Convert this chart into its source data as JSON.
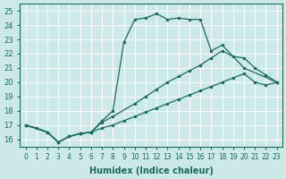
{
  "xlabel": "Humidex (Indice chaleur)",
  "bg_color": "#cce8e8",
  "grid_color": "#aad4d4",
  "line_color": "#1a6b5a",
  "xlim": [
    -0.5,
    23.5
  ],
  "ylim": [
    15.5,
    25.5
  ],
  "yticks": [
    16,
    17,
    18,
    19,
    20,
    21,
    22,
    23,
    24,
    25
  ],
  "xticks": [
    0,
    1,
    2,
    3,
    4,
    5,
    6,
    7,
    8,
    9,
    10,
    11,
    12,
    13,
    14,
    15,
    16,
    17,
    18,
    19,
    20,
    21,
    22,
    23
  ],
  "curve1_x": [
    0,
    1,
    2,
    3,
    4,
    5,
    6,
    7,
    8,
    9,
    10,
    11,
    12,
    13,
    14,
    15,
    16,
    17,
    18,
    20,
    23
  ],
  "curve1_y": [
    17.0,
    16.8,
    16.5,
    15.8,
    16.2,
    16.4,
    16.5,
    17.3,
    18.0,
    22.8,
    24.4,
    24.5,
    24.8,
    24.4,
    24.5,
    24.4,
    24.4,
    22.2,
    22.6,
    21.0,
    20.0
  ],
  "curve2_x": [
    0,
    2,
    3,
    4,
    5,
    6,
    7,
    8,
    10,
    11,
    12,
    13,
    14,
    15,
    16,
    17,
    18,
    19,
    20,
    21,
    22,
    23
  ],
  "curve2_y": [
    17.0,
    16.5,
    15.8,
    16.2,
    16.4,
    16.5,
    17.2,
    17.6,
    18.5,
    19.0,
    19.5,
    20.0,
    20.4,
    20.8,
    21.2,
    21.7,
    22.2,
    21.8,
    21.7,
    21.0,
    20.5,
    20.0
  ],
  "curve3_x": [
    0,
    2,
    3,
    4,
    5,
    6,
    7,
    8,
    9,
    10,
    11,
    12,
    13,
    14,
    15,
    16,
    17,
    18,
    19,
    20,
    21,
    22,
    23
  ],
  "curve3_y": [
    17.0,
    16.5,
    15.8,
    16.2,
    16.4,
    16.5,
    16.8,
    17.0,
    17.3,
    17.6,
    17.9,
    18.2,
    18.5,
    18.8,
    19.1,
    19.4,
    19.7,
    20.0,
    20.3,
    20.6,
    20.0,
    19.8,
    20.0
  ]
}
